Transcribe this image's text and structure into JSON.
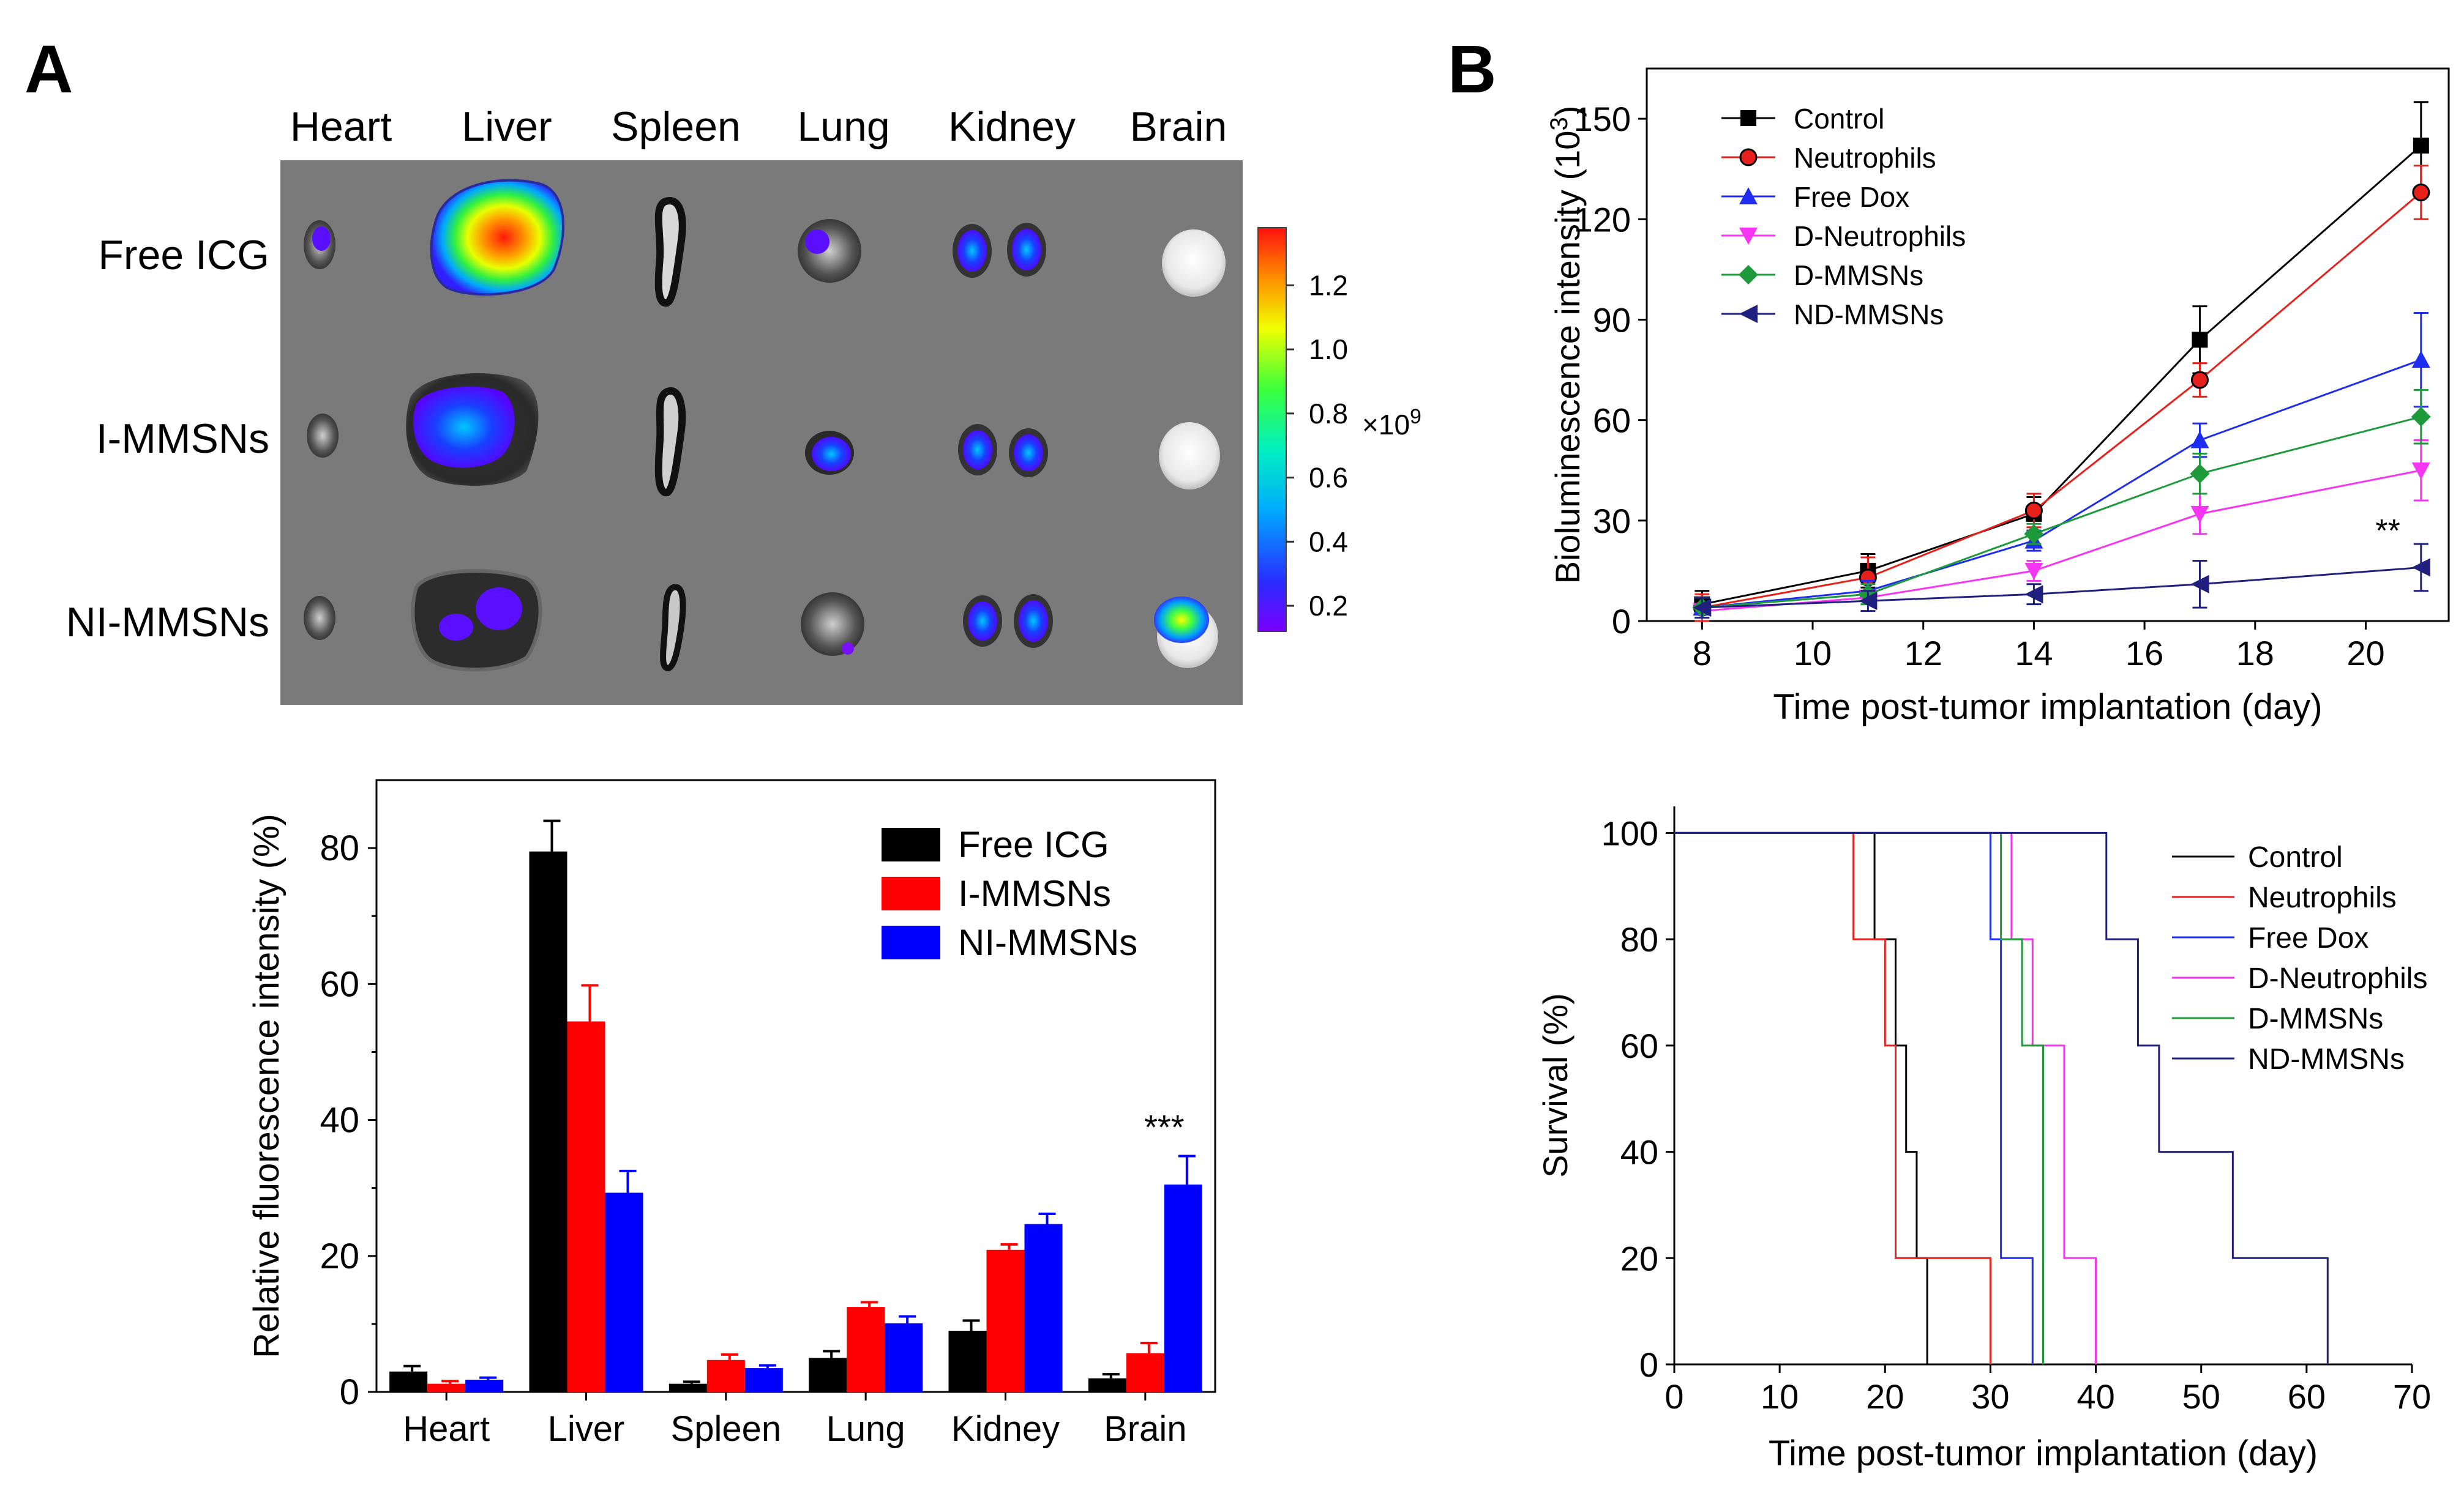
{
  "panels": {
    "a": "A",
    "b": "B"
  },
  "colors": {
    "free_icg": "#000000",
    "i_mmsns": "#ff0000",
    "ni_mmsns": "#0000ff",
    "control": "#000000",
    "neutrophils": "#e8201c",
    "free_dox": "#1f2df0",
    "d_neutrophils": "#f535f2",
    "d_mmsns": "#1f9a3a",
    "nd_mmsns": "#20207e",
    "imaging_bg": "#7a7a7a"
  },
  "imaging": {
    "organs": [
      "Heart",
      "Liver",
      "Spleen",
      "Lung",
      "Kidney",
      "Brain"
    ],
    "rows": [
      "Free ICG",
      "I-MMSNs",
      "NI-MMSNs"
    ],
    "colorbar": {
      "ticks": [
        "1.2",
        "1.0",
        "0.8",
        "0.6",
        "0.4",
        "0.2"
      ],
      "multiplier": "×10",
      "exponent": "9",
      "range": [
        0.12,
        1.38
      ]
    }
  },
  "chart_data": [
    {
      "id": "organ-distribution",
      "type": "bar",
      "title": "",
      "xlabel": "",
      "ylabel": "Relative fluorescence intensity (%)",
      "ylim": [
        0,
        90
      ],
      "yticks": [
        0,
        20,
        40,
        60,
        80
      ],
      "categories": [
        "Heart",
        "Liver",
        "Spleen",
        "Lung",
        "Kidney",
        "Brain"
      ],
      "legend": "top-right",
      "annotation": "***",
      "series": [
        {
          "name": "Free ICG",
          "values": [
            3.0,
            79.5,
            1.2,
            5.0,
            9.0,
            2.0
          ],
          "errors": [
            0.8,
            4.5,
            0.3,
            1.0,
            1.5,
            0.6
          ]
        },
        {
          "name": "I-MMSNs",
          "values": [
            1.2,
            54.5,
            4.7,
            12.5,
            20.9,
            5.7
          ],
          "errors": [
            0.4,
            5.3,
            0.8,
            0.7,
            0.8,
            1.5
          ]
        },
        {
          "name": "NI-MMSNs",
          "values": [
            1.8,
            29.3,
            3.5,
            10.1,
            24.7,
            30.5
          ],
          "errors": [
            0.3,
            3.2,
            0.4,
            1.0,
            1.5,
            4.2
          ]
        }
      ]
    },
    {
      "id": "bioluminescence",
      "type": "line",
      "title": "",
      "xlabel": "Time post-tumor implantation (day)",
      "ylabel": "Bioluminescence intensity (10",
      "ylabel_exp": "3",
      "ylabel_end": ")",
      "xlim": [
        7,
        21.5
      ],
      "ylim": [
        0,
        165
      ],
      "xticks": [
        8,
        10,
        12,
        14,
        16,
        18,
        20
      ],
      "yticks": [
        0,
        30,
        60,
        90,
        120,
        150
      ],
      "x": [
        8,
        11,
        14,
        17,
        21
      ],
      "legend": "top-left",
      "annotation": "**",
      "series": [
        {
          "name": "Control",
          "values": [
            5,
            15,
            32,
            84,
            142
          ],
          "errors": [
            4,
            5,
            5,
            10,
            13
          ]
        },
        {
          "name": "Neutrophils",
          "values": [
            4,
            13,
            33,
            72,
            128
          ],
          "errors": [
            4,
            6,
            5,
            5,
            8
          ]
        },
        {
          "name": "Free Dox",
          "values": [
            4,
            9,
            24,
            54,
            78
          ],
          "errors": [
            3,
            3,
            3,
            5,
            14
          ]
        },
        {
          "name": "D-Neutrophils",
          "values": [
            3,
            7,
            15,
            32,
            45
          ],
          "errors": [
            2,
            2,
            3,
            6,
            9
          ]
        },
        {
          "name": "D-MMSNs",
          "values": [
            4,
            8,
            26,
            44,
            61
          ],
          "errors": [
            3,
            3,
            3,
            6,
            8
          ]
        },
        {
          "name": "ND-MMSNs",
          "values": [
            4,
            6,
            8,
            11,
            16
          ],
          "errors": [
            3,
            3,
            3,
            7,
            7
          ]
        }
      ]
    },
    {
      "id": "survival",
      "type": "line",
      "title": "",
      "xlabel": "Time post-tumor implantation (day)",
      "ylabel": "Survival (%)",
      "xlim": [
        0,
        70
      ],
      "ylim": [
        0,
        105
      ],
      "xticks": [
        0,
        10,
        20,
        30,
        40,
        50,
        60,
        70
      ],
      "yticks": [
        0,
        20,
        40,
        60,
        80,
        100
      ],
      "legend": "top-right",
      "series": [
        {
          "name": "Control",
          "steps": [
            [
              0,
              100
            ],
            [
              19,
              80
            ],
            [
              21,
              60
            ],
            [
              22,
              40
            ],
            [
              23,
              20
            ],
            [
              24,
              0
            ]
          ]
        },
        {
          "name": "Neutrophils",
          "steps": [
            [
              0,
              100
            ],
            [
              17,
              80
            ],
            [
              20,
              60
            ],
            [
              21,
              20
            ],
            [
              30,
              0
            ]
          ]
        },
        {
          "name": "Free Dox",
          "steps": [
            [
              0,
              100
            ],
            [
              30,
              80
            ],
            [
              31,
              20
            ],
            [
              34,
              0
            ]
          ]
        },
        {
          "name": "D-Neutrophils",
          "steps": [
            [
              0,
              100
            ],
            [
              32,
              80
            ],
            [
              34,
              60
            ],
            [
              37,
              20
            ],
            [
              40,
              0
            ]
          ]
        },
        {
          "name": "D-MMSNs",
          "steps": [
            [
              0,
              100
            ],
            [
              31,
              80
            ],
            [
              33,
              60
            ],
            [
              35,
              0
            ]
          ]
        },
        {
          "name": "ND-MMSNs",
          "steps": [
            [
              0,
              100
            ],
            [
              41,
              80
            ],
            [
              44,
              60
            ],
            [
              46,
              40
            ],
            [
              53,
              20
            ],
            [
              62,
              0
            ]
          ]
        }
      ]
    }
  ]
}
